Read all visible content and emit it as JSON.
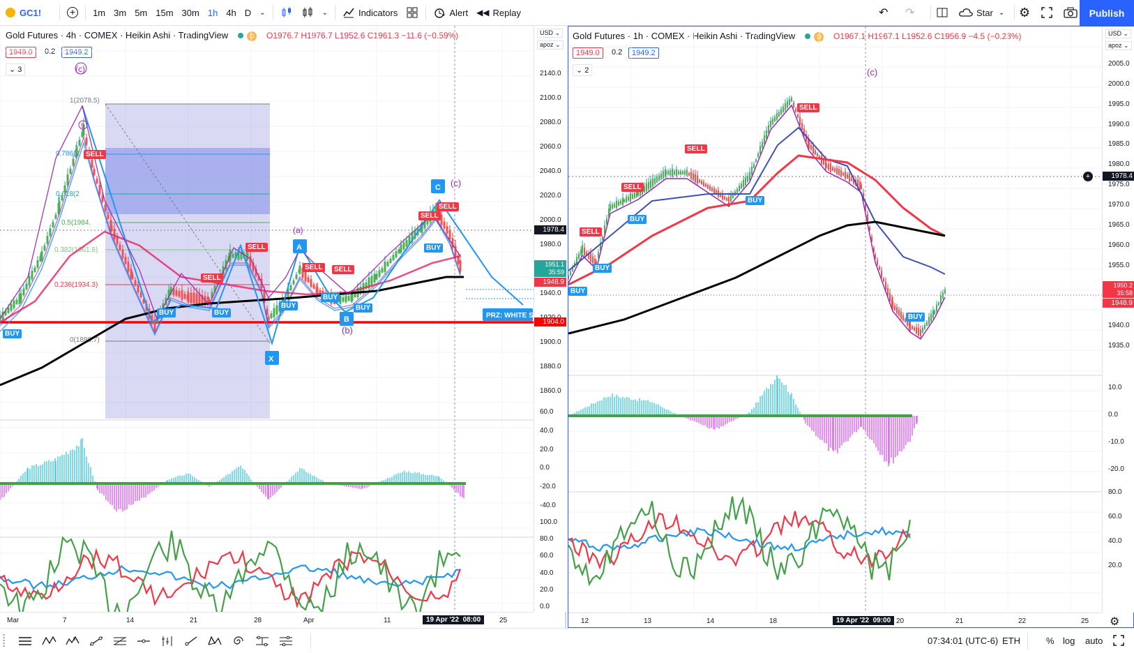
{
  "topbar": {
    "symbol": "GC1!",
    "intervals": [
      "1m",
      "3m",
      "5m",
      "15m",
      "30m",
      "1h",
      "4h",
      "D"
    ],
    "active_interval": "1h",
    "indicators_label": "Indicators",
    "alert_label": "Alert",
    "replay_label": "Replay",
    "layout_name": "Star",
    "publish_label": "Publish"
  },
  "left": {
    "title": "Gold Futures · 4h · COMEX · Heikin Ashi · TradingView",
    "badge": "D",
    "ohlc": "O1976.7 H1976.7 L1952.6 C1961.3 −11.6 (−0.59%)",
    "bid": "1949.0",
    "spread": "0.2",
    "ask": "1949.2",
    "collapse_count": "3",
    "currency": "USD",
    "currency2": "apoz",
    "price_ticks": [
      "2140.0",
      "2100.0",
      "2080.0",
      "2060.0",
      "2040.0",
      "2020.0",
      "2000.0",
      "1980.0",
      "1960.0",
      "1940.0",
      "1920.0",
      "1900.0",
      "1880.0",
      "1860.0"
    ],
    "price_current": "1978.4",
    "price_last": "1951.1",
    "price_timer": "35:59",
    "price_red": "1948.9",
    "price_line": "1904.0",
    "macd_ticks": [
      "60.0",
      "40.0",
      "20.0",
      "0.0",
      "-20.0",
      "-40.0"
    ],
    "rsi_ticks": [
      "100.0",
      "80.0",
      "60.0",
      "40.0",
      "20.0",
      "0.0"
    ],
    "time_ticks": [
      "Mar",
      "7",
      "14",
      "21",
      "28",
      "Apr",
      "11",
      "25"
    ],
    "time_cursor": "19 Apr '22",
    "time_cursor2": "08:00",
    "fib": [
      "1(2078.5)",
      "0.786(2",
      "0.618(2",
      "0.5(1984.",
      "0.382(1961.8)",
      "0.236(1934.3)",
      "0(1889.7)"
    ],
    "waves": [
      "(c)",
      "(a)",
      "(b)",
      "(c)"
    ],
    "points": [
      "A",
      "B",
      "C",
      "X"
    ],
    "prz": "PRZ: WHITE S",
    "signals": [
      "BUY",
      "SELL",
      "SELL",
      "SELL",
      "BUY",
      "BUY",
      "BUY",
      "SELL",
      "SELL",
      "BUY",
      "BUY",
      "SELL",
      "SELL",
      "BUY",
      "BUY"
    ],
    "circle5": "5"
  },
  "right": {
    "title": "Gold Futures · 1h · COMEX · Heikin Ashi · TradingView",
    "badge": "D",
    "ohlc": "O1967.1 H1967.1 L1952.6 C1956.9 −4.5 (−0.23%)",
    "bid": "1949.0",
    "spread": "0.2",
    "ask": "1949.2",
    "collapse_count": "2",
    "currency": "USD",
    "currency2": "apoz",
    "price_ticks": [
      "2005.0",
      "2000.0",
      "1995.0",
      "1990.0",
      "1985.0",
      "1980.0",
      "1975.0",
      "1970.0",
      "1965.0",
      "1960.0",
      "1955.0",
      "1950.0",
      "1945.0",
      "1940.0",
      "1935.0"
    ],
    "price_current": "1978.4",
    "price_last": "1950.2",
    "price_timer": "35:58",
    "price_red": "1948.9",
    "macd_ticks": [
      "10.0",
      "0.0",
      "-10.0",
      "-20.0"
    ],
    "rsi_ticks": [
      "80.0",
      "60.0",
      "40.0",
      "20.0"
    ],
    "time_ticks": [
      "12",
      "13",
      "14",
      "18",
      "20",
      "21",
      "22",
      "25"
    ],
    "time_cursor": "19 Apr '22",
    "time_cursor2": "09:00",
    "wave": "(c)",
    "signals": [
      "SELL",
      "SELL",
      "SELL",
      "SELL",
      "BUY",
      "BUY",
      "BUY",
      "BUY",
      "SELL"
    ]
  },
  "statusbar": {
    "clock": "07:34:01 (UTC-6)",
    "session": "ETH",
    "percent": "%",
    "log": "log",
    "auto": "auto"
  },
  "colors": {
    "accent": "#2962ff",
    "bull": "#26a69a",
    "bear": "#f23645",
    "buy": "#2196f3"
  }
}
